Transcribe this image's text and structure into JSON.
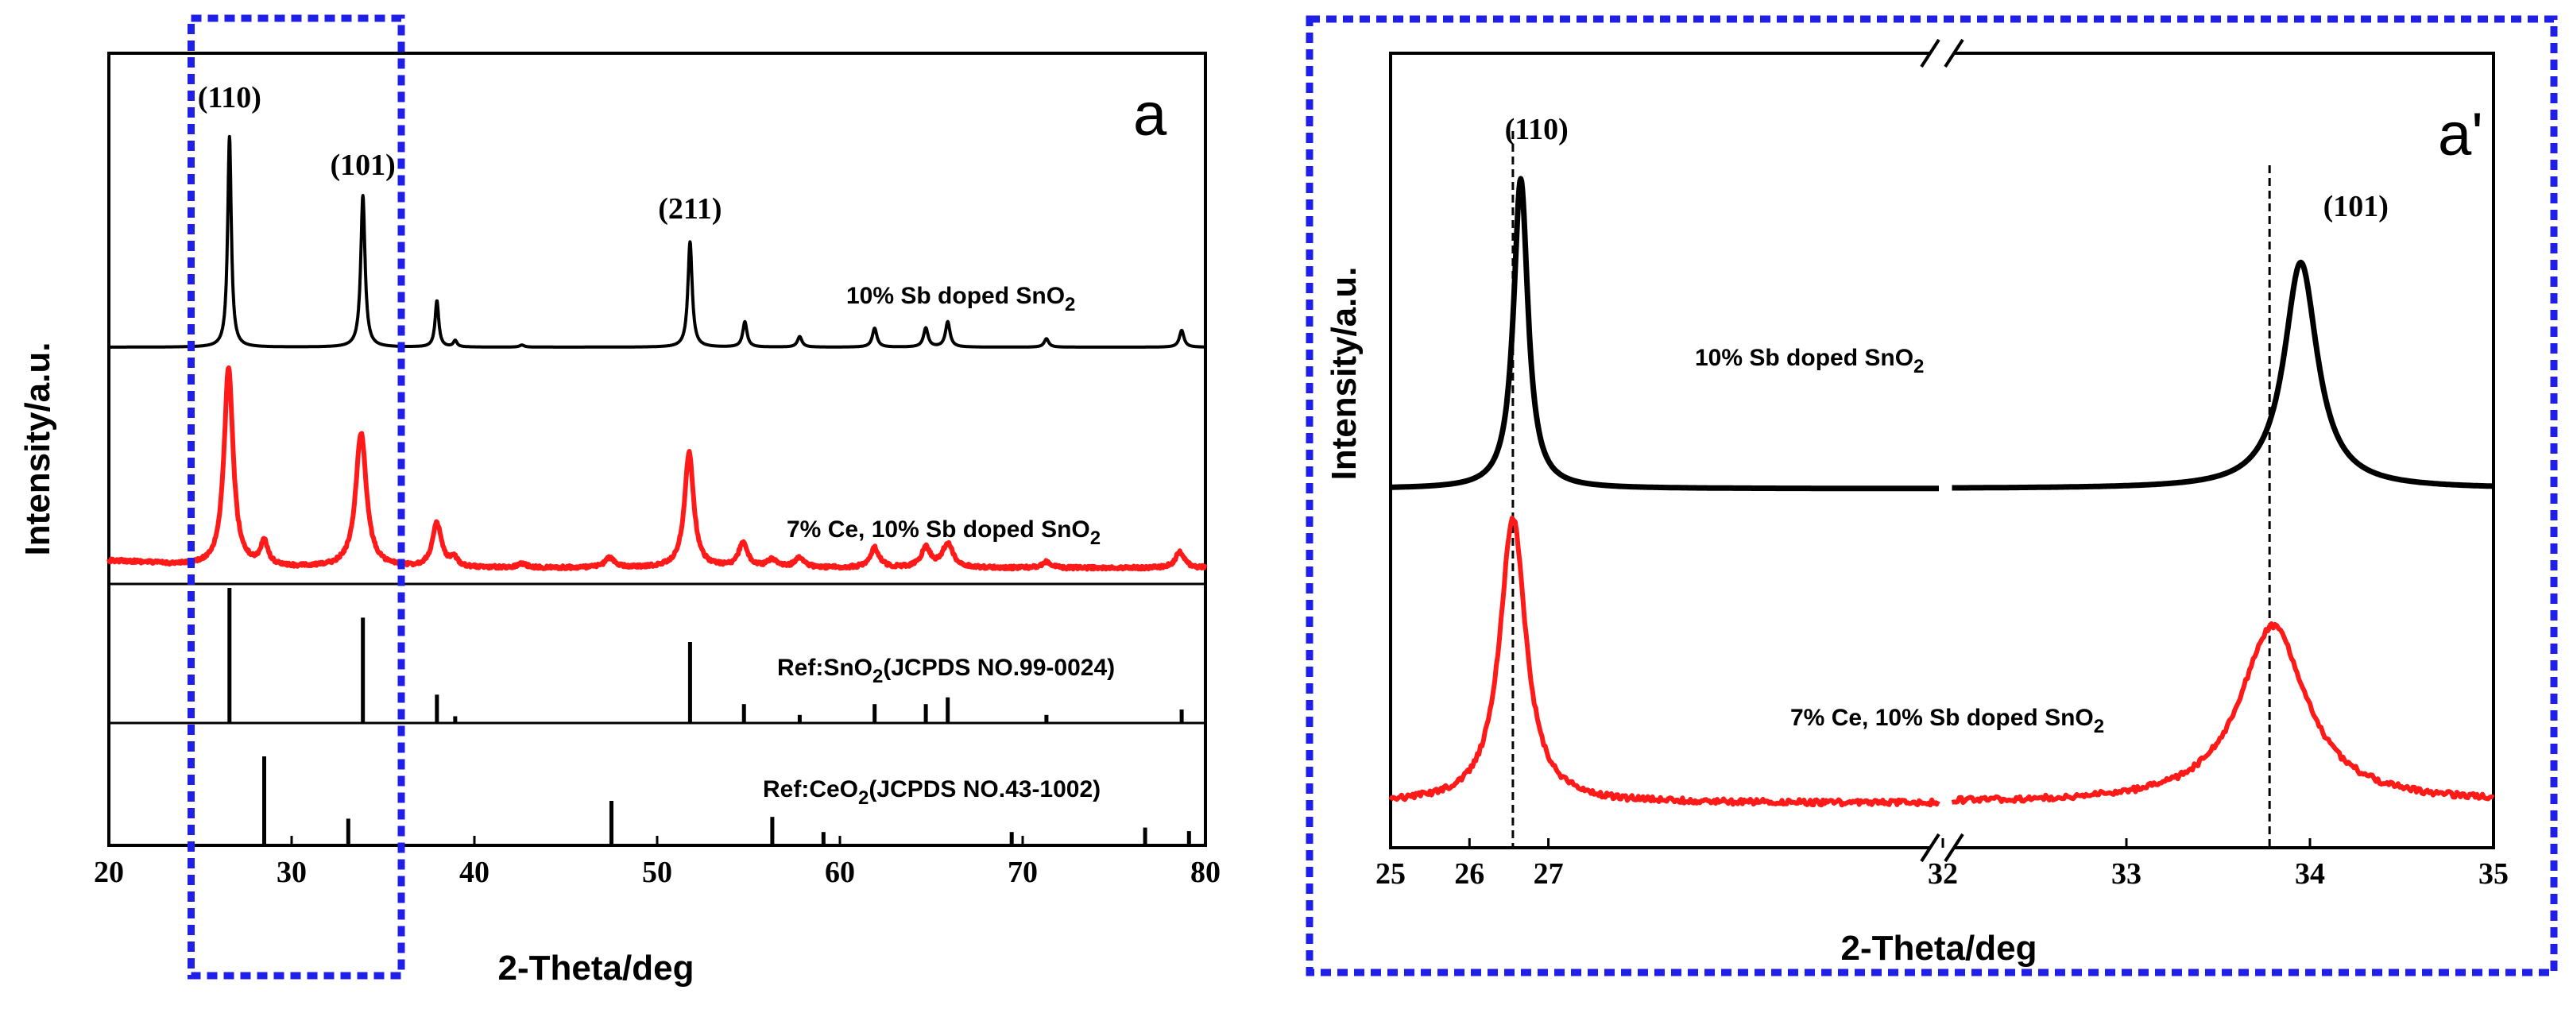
{
  "colors": {
    "black": "#000000",
    "red": "#ff1a1a",
    "highlight": "#1f1fe8"
  },
  "chart_data": [
    {
      "type": "line",
      "panel_label": "a",
      "xlabel": "2-Theta/deg",
      "ylabel": "Intensity/a.u.",
      "xlim": [
        20,
        80
      ],
      "xticks": [
        20,
        30,
        40,
        50,
        60,
        70,
        80
      ],
      "peak_labels": [
        {
          "text": "(110)",
          "x": 26.6
        },
        {
          "text": "(101)",
          "x": 33.9
        },
        {
          "text": "(211)",
          "x": 51.8
        }
      ],
      "highlight_range_x": [
        24.5,
        36.0
      ],
      "series": [
        {
          "name": "10% Sb doped SnO2",
          "label_main": "10%  Sb doped SnO",
          "label_sub": "2",
          "color": "#000000",
          "peaks": [
            {
              "x": 26.6,
              "h": 1.0,
              "w": 0.12
            },
            {
              "x": 33.9,
              "h": 0.72,
              "w": 0.14
            },
            {
              "x": 37.95,
              "h": 0.22,
              "w": 0.12
            },
            {
              "x": 38.95,
              "h": 0.03,
              "w": 0.12
            },
            {
              "x": 42.6,
              "h": 0.01,
              "w": 0.15
            },
            {
              "x": 51.8,
              "h": 0.5,
              "w": 0.14
            },
            {
              "x": 54.8,
              "h": 0.12,
              "w": 0.14
            },
            {
              "x": 57.8,
              "h": 0.05,
              "w": 0.15
            },
            {
              "x": 61.9,
              "h": 0.09,
              "w": 0.15
            },
            {
              "x": 64.7,
              "h": 0.09,
              "w": 0.15
            },
            {
              "x": 65.9,
              "h": 0.12,
              "w": 0.15
            },
            {
              "x": 71.3,
              "h": 0.04,
              "w": 0.15
            },
            {
              "x": 78.7,
              "h": 0.08,
              "w": 0.15
            }
          ]
        },
        {
          "name": "7% Ce, 10% Sb doped SnO2",
          "label_main": "7%  Ce, 10%  Sb doped SnO",
          "label_sub": "2",
          "color": "#ff1a1a",
          "peaks": [
            {
              "x": 26.55,
              "h": 1.0,
              "w": 0.3
            },
            {
              "x": 28.5,
              "h": 0.12,
              "w": 0.25
            },
            {
              "x": 33.8,
              "h": 0.68,
              "w": 0.35
            },
            {
              "x": 37.95,
              "h": 0.22,
              "w": 0.3
            },
            {
              "x": 38.9,
              "h": 0.04,
              "w": 0.25
            },
            {
              "x": 42.6,
              "h": 0.02,
              "w": 0.3
            },
            {
              "x": 47.4,
              "h": 0.05,
              "w": 0.3
            },
            {
              "x": 51.75,
              "h": 0.58,
              "w": 0.3
            },
            {
              "x": 54.7,
              "h": 0.12,
              "w": 0.3
            },
            {
              "x": 56.3,
              "h": 0.04,
              "w": 0.3
            },
            {
              "x": 57.8,
              "h": 0.05,
              "w": 0.3
            },
            {
              "x": 61.9,
              "h": 0.1,
              "w": 0.3
            },
            {
              "x": 64.7,
              "h": 0.1,
              "w": 0.3
            },
            {
              "x": 65.9,
              "h": 0.12,
              "w": 0.35
            },
            {
              "x": 71.3,
              "h": 0.03,
              "w": 0.3
            },
            {
              "x": 78.6,
              "h": 0.08,
              "w": 0.3
            }
          ]
        }
      ],
      "references": [
        {
          "name": "Ref:SnO2(JCPDS NO.99-0024)",
          "label_main": "Ref:SnO",
          "label_sub": "2",
          "label_tail": "(JCPDS NO.99-0024)",
          "sticks": [
            {
              "x": 26.6,
              "h": 1.0
            },
            {
              "x": 33.9,
              "h": 0.78
            },
            {
              "x": 37.95,
              "h": 0.21
            },
            {
              "x": 38.95,
              "h": 0.05
            },
            {
              "x": 51.8,
              "h": 0.6
            },
            {
              "x": 54.75,
              "h": 0.14
            },
            {
              "x": 57.8,
              "h": 0.06
            },
            {
              "x": 61.9,
              "h": 0.14
            },
            {
              "x": 64.7,
              "h": 0.14
            },
            {
              "x": 65.9,
              "h": 0.19
            },
            {
              "x": 71.3,
              "h": 0.06
            },
            {
              "x": 78.7,
              "h": 0.1
            }
          ]
        },
        {
          "name": "Ref:CeO2(JCPDS NO.43-1002)",
          "label_main": "Ref:CeO",
          "label_sub": "2",
          "label_tail": "(JCPDS NO.43-1002)",
          "sticks": [
            {
              "x": 28.5,
              "h": 1.0
            },
            {
              "x": 33.1,
              "h": 0.3
            },
            {
              "x": 47.5,
              "h": 0.5
            },
            {
              "x": 56.3,
              "h": 0.32
            },
            {
              "x": 59.1,
              "h": 0.15
            },
            {
              "x": 69.4,
              "h": 0.15
            },
            {
              "x": 76.7,
              "h": 0.2
            },
            {
              "x": 79.1,
              "h": 0.16
            }
          ]
        }
      ]
    },
    {
      "type": "line",
      "panel_label": "a'",
      "xlabel": "2-Theta/deg",
      "ylabel": "Intensity/a.u.",
      "broken_axis": true,
      "segments": [
        {
          "xlim": [
            25,
            32
          ],
          "ticks": [
            25,
            26,
            27,
            32
          ],
          "tick_labels": [
            "25",
            "26",
            "27",
            "32"
          ]
        },
        {
          "xlim": [
            32,
            35
          ],
          "ticks": [
            33,
            34,
            35
          ],
          "tick_labels": [
            "33",
            "34",
            "35"
          ]
        }
      ],
      "reference_lines_x": [
        26.55,
        33.78
      ],
      "peak_labels": [
        {
          "text": "(110)",
          "x": 26.85
        },
        {
          "text": "(101)",
          "x": 34.25
        }
      ],
      "series": [
        {
          "name": "10% Sb doped SnO2",
          "label_main": "10%  Sb doped SnO",
          "label_sub": "2",
          "color": "#000000",
          "peaks": [
            {
              "x": 26.65,
              "h": 1.0,
              "w": 0.11
            },
            {
              "x": 33.95,
              "h": 0.73,
              "w": 0.11
            }
          ]
        },
        {
          "name": "7% Ce, 10% Sb doped SnO2",
          "label_main": "7%  Ce, 10%  Sb doped SnO",
          "label_sub": "2",
          "color": "#ff1a1a",
          "peaks": [
            {
              "x": 26.55,
              "h": 1.0,
              "w": 0.2
            },
            {
              "x": 33.8,
              "h": 0.62,
              "w": 0.22
            }
          ]
        }
      ]
    }
  ]
}
